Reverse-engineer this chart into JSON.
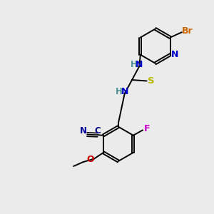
{
  "bg_color": "#ebebeb",
  "bond_color": "#000000",
  "colors": {
    "N": "#0000cc",
    "H": "#4a9090",
    "S": "#b8b800",
    "Br": "#cc6600",
    "F": "#cc00cc",
    "O": "#cc0000",
    "C_label": "#000080",
    "N_cyan_label": "#000099"
  }
}
